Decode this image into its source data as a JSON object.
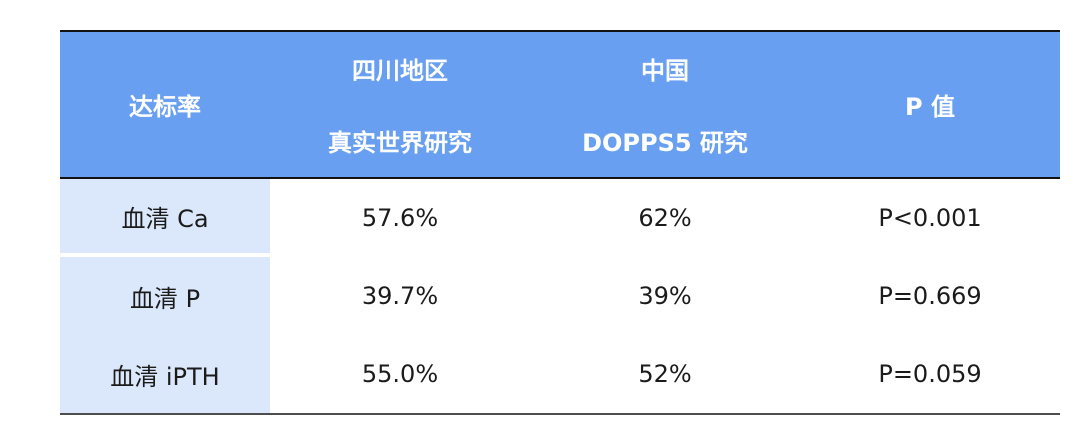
{
  "table": {
    "header": {
      "col1": "达标率",
      "col2_line1": "四川地区",
      "col2_line2": "真实世界研究",
      "col3_line1": "中国",
      "col3_line2": "DOPPS5 研究",
      "col4": "P 值"
    },
    "rows": [
      {
        "label": "血清 Ca",
        "sichuan": "57.6%",
        "china": "62%",
        "p": "P<0.001"
      },
      {
        "label": "血清 P",
        "sichuan": "39.7%",
        "china": "39%",
        "p": "P=0.669"
      },
      {
        "label": "血清 iPTH",
        "sichuan": "55.0%",
        "china": "52%",
        "p": "P=0.059"
      }
    ],
    "colors": {
      "header_bg": "#699ff0",
      "header_text": "#ffffff",
      "label_col_bg": "#dbe8fb",
      "body_text": "#1b1b1b",
      "top_rule": "#121212",
      "bottom_rule": "#4d4d4d"
    }
  },
  "chart_data": {
    "type": "table",
    "title": "",
    "columns": [
      "达标率",
      "四川地区 真实世界研究",
      "中国 DOPPS5 研究",
      "P 值"
    ],
    "rows": [
      [
        "血清 Ca",
        "57.6%",
        "62%",
        "P<0.001"
      ],
      [
        "血清 P",
        "39.7%",
        "39%",
        "P=0.669"
      ],
      [
        "血清 iPTH",
        "55.0%",
        "52%",
        "P=0.059"
      ]
    ],
    "values_numeric": {
      "sichuan_real_world_pct": [
        57.6,
        39.7,
        55.0
      ],
      "china_dopps5_pct": [
        62,
        39,
        52
      ]
    },
    "p_values": [
      "<0.001",
      "=0.669",
      "=0.059"
    ]
  }
}
